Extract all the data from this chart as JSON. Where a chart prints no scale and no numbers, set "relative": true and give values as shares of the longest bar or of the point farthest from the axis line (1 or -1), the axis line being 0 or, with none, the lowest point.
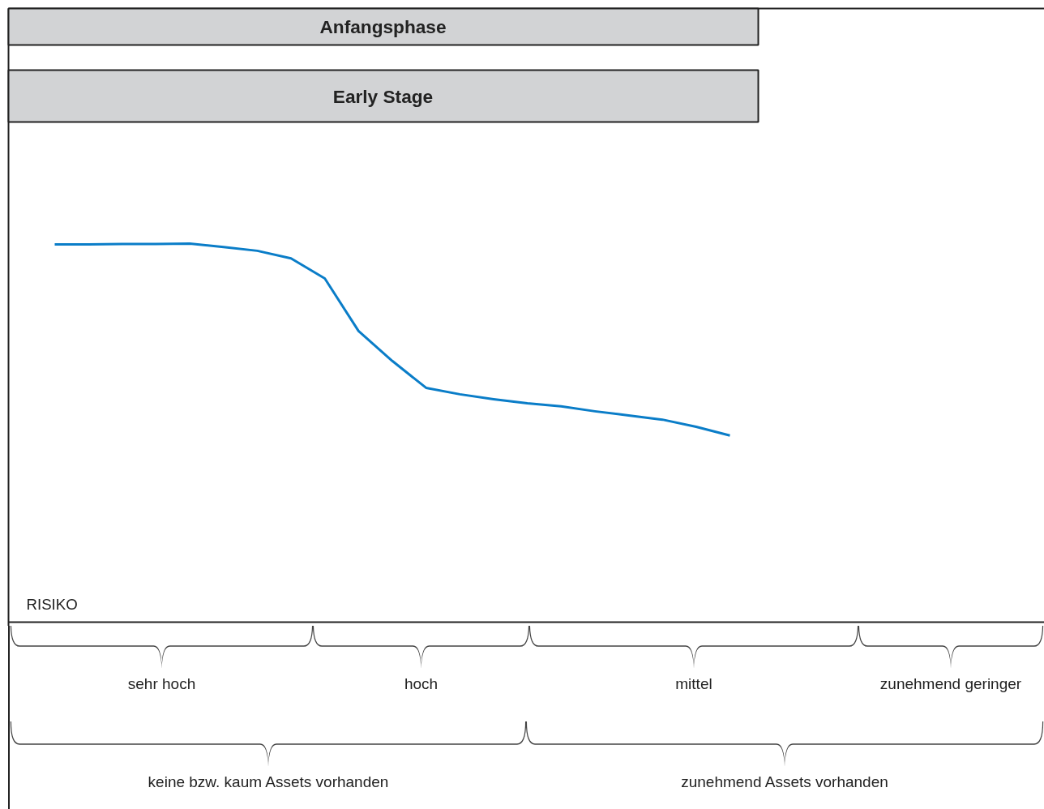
{
  "chart_data": {
    "type": "line",
    "title": "Anfangsphase",
    "subtitle": "Early Stage",
    "ylabel": "RISIKO",
    "relative": true,
    "tick_labels": false,
    "categories": [
      null,
      null,
      null,
      null,
      null,
      null,
      null,
      null,
      null,
      null,
      null,
      null,
      null,
      null,
      null,
      null,
      null,
      null,
      null,
      null,
      null
    ],
    "series": [
      {
        "color": "#0a7dc8",
        "values": [
          0.998,
          0.998,
          0.999,
          0.999,
          1,
          0.991,
          0.981,
          0.961,
          0.908,
          0.769,
          0.69,
          0.619,
          0.602,
          0.589,
          0.578,
          0.57,
          0.557,
          0.546,
          0.535,
          0.516,
          0.493
        ]
      }
    ],
    "annotations": [
      "sehr hoch",
      "hoch",
      "mittel",
      "zunehmend geringer",
      "keine bzw. kaum Assets vorhanden",
      "zunehmend Assets vorhanden"
    ]
  }
}
